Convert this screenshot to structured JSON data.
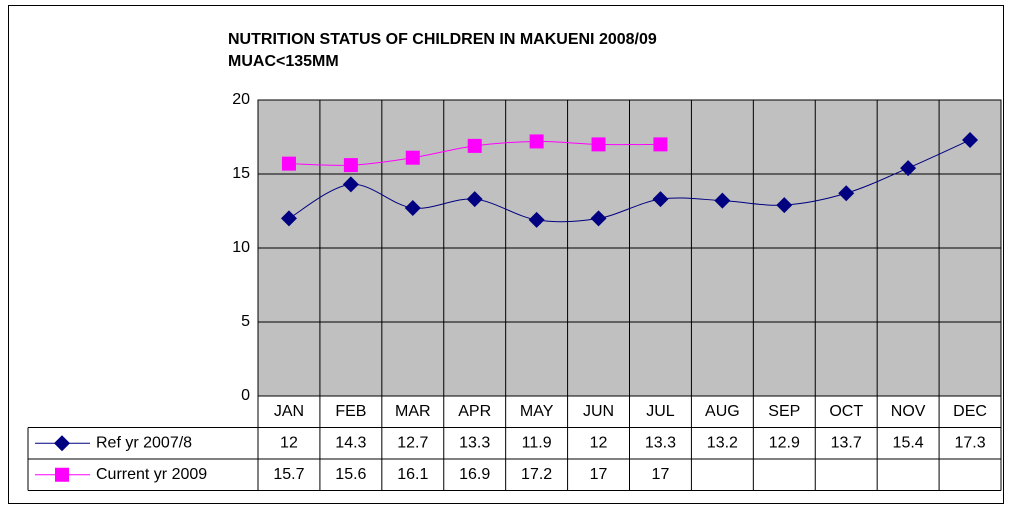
{
  "chart_data": {
    "type": "line",
    "title": [
      "NUTRITION STATUS OF CHILDREN IN MAKUENI 2008/09",
      "MUAC<135MM"
    ],
    "categories": [
      "JAN",
      "FEB",
      "MAR",
      "APR",
      "MAY",
      "JUN",
      "JUL",
      "AUG",
      "SEP",
      "OCT",
      "NOV",
      "DEC"
    ],
    "series": [
      {
        "name": "Ref yr 2007/8",
        "color": "#000080",
        "marker": "diamond",
        "values": [
          12,
          14.3,
          12.7,
          13.3,
          11.9,
          12,
          13.3,
          13.2,
          12.9,
          13.7,
          15.4,
          17.3
        ]
      },
      {
        "name": "Current yr 2009",
        "color": "#ff00ff",
        "marker": "square",
        "values": [
          15.7,
          15.6,
          16.1,
          16.9,
          17.2,
          17,
          17,
          null,
          null,
          null,
          null,
          null
        ]
      }
    ],
    "ylim": [
      0,
      20
    ],
    "yticks": [
      0,
      5,
      10,
      15,
      20
    ],
    "grid": true,
    "plot_background": "#c0c0c0",
    "data_table": true
  }
}
